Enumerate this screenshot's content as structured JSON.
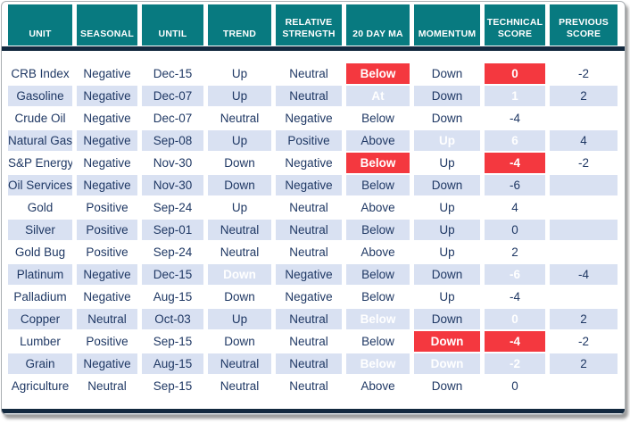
{
  "colors": {
    "header_bg": "#087A80",
    "header_text": "#FFFFFF",
    "row_alt": "#D9E1F2",
    "highlight_red": "#F4383F",
    "highlight_green": "#92D050",
    "text_navy": "#1F3864",
    "divider_navy": "#13293F"
  },
  "table": {
    "headers": [
      "UNIT",
      "SEASONAL",
      "UNTIL",
      "TREND",
      "RELATIVE STRENGTH",
      "20 DAY MA",
      "MOMENTUM",
      "TECHNICAL SCORE",
      "PREVIOUS SCORE"
    ],
    "rows": [
      {
        "cells": [
          {
            "t": "CRB Index"
          },
          {
            "t": "Negative"
          },
          {
            "t": "Dec-15"
          },
          {
            "t": "Up"
          },
          {
            "t": "Neutral"
          },
          {
            "t": "Below",
            "h": "red"
          },
          {
            "t": "Down"
          },
          {
            "t": "0",
            "h": "red"
          },
          {
            "t": "-2"
          }
        ]
      },
      {
        "cells": [
          {
            "t": "Gasoline"
          },
          {
            "t": "Negative"
          },
          {
            "t": "Dec-07"
          },
          {
            "t": "Up"
          },
          {
            "t": "Neutral"
          },
          {
            "t": "At",
            "h": "red"
          },
          {
            "t": "Down"
          },
          {
            "t": "1",
            "h": "red"
          },
          {
            "t": "2"
          }
        ]
      },
      {
        "cells": [
          {
            "t": "Crude Oil"
          },
          {
            "t": "Negative"
          },
          {
            "t": "Dec-07"
          },
          {
            "t": "Neutral"
          },
          {
            "t": "Negative"
          },
          {
            "t": "Below"
          },
          {
            "t": "Down"
          },
          {
            "t": "-4"
          },
          {
            "t": ""
          }
        ]
      },
      {
        "cells": [
          {
            "t": "Natural Gas"
          },
          {
            "t": "Negative"
          },
          {
            "t": "Sep-08"
          },
          {
            "t": "Up"
          },
          {
            "t": "Positive"
          },
          {
            "t": "Above"
          },
          {
            "t": "Up",
            "h": "green"
          },
          {
            "t": "6",
            "h": "green"
          },
          {
            "t": "4"
          }
        ]
      },
      {
        "cells": [
          {
            "t": "S&P Energy"
          },
          {
            "t": "Negative"
          },
          {
            "t": "Nov-30"
          },
          {
            "t": "Down"
          },
          {
            "t": "Negative"
          },
          {
            "t": "Below",
            "h": "red"
          },
          {
            "t": "Up"
          },
          {
            "t": "-4",
            "h": "red"
          },
          {
            "t": "-2"
          }
        ]
      },
      {
        "cells": [
          {
            "t": "Oil Services"
          },
          {
            "t": "Negative"
          },
          {
            "t": "Nov-30"
          },
          {
            "t": "Down"
          },
          {
            "t": "Negative"
          },
          {
            "t": "Below"
          },
          {
            "t": "Down"
          },
          {
            "t": "-6"
          },
          {
            "t": ""
          }
        ]
      },
      {
        "cells": [
          {
            "t": "Gold"
          },
          {
            "t": "Positive"
          },
          {
            "t": "Sep-24"
          },
          {
            "t": "Up"
          },
          {
            "t": "Neutral"
          },
          {
            "t": "Above"
          },
          {
            "t": "Up"
          },
          {
            "t": "4"
          },
          {
            "t": ""
          }
        ]
      },
      {
        "cells": [
          {
            "t": "Silver"
          },
          {
            "t": "Positive"
          },
          {
            "t": "Sep-01"
          },
          {
            "t": "Neutral"
          },
          {
            "t": "Neutral"
          },
          {
            "t": "Below"
          },
          {
            "t": "Up"
          },
          {
            "t": "0"
          },
          {
            "t": ""
          }
        ]
      },
      {
        "cells": [
          {
            "t": "Gold Bug"
          },
          {
            "t": "Positive"
          },
          {
            "t": "Sep-24"
          },
          {
            "t": "Neutral"
          },
          {
            "t": "Neutral"
          },
          {
            "t": "Above"
          },
          {
            "t": "Up"
          },
          {
            "t": "2"
          },
          {
            "t": ""
          }
        ]
      },
      {
        "cells": [
          {
            "t": "Platinum"
          },
          {
            "t": "Negative"
          },
          {
            "t": "Dec-15"
          },
          {
            "t": "Down",
            "h": "red"
          },
          {
            "t": "Negative"
          },
          {
            "t": "Below"
          },
          {
            "t": "Down"
          },
          {
            "t": "-6",
            "h": "red"
          },
          {
            "t": "-4"
          }
        ]
      },
      {
        "cells": [
          {
            "t": "Palladium"
          },
          {
            "t": "Negative"
          },
          {
            "t": "Aug-15"
          },
          {
            "t": "Down"
          },
          {
            "t": "Negative"
          },
          {
            "t": "Below"
          },
          {
            "t": "Up"
          },
          {
            "t": "-4"
          },
          {
            "t": ""
          }
        ]
      },
      {
        "cells": [
          {
            "t": "Copper"
          },
          {
            "t": "Neutral"
          },
          {
            "t": "Oct-03"
          },
          {
            "t": "Up"
          },
          {
            "t": "Neutral"
          },
          {
            "t": "Below",
            "h": "red"
          },
          {
            "t": "Down"
          },
          {
            "t": "0",
            "h": "red"
          },
          {
            "t": "2"
          }
        ]
      },
      {
        "cells": [
          {
            "t": "Lumber"
          },
          {
            "t": "Positive"
          },
          {
            "t": "Sep-15"
          },
          {
            "t": "Down"
          },
          {
            "t": "Neutral"
          },
          {
            "t": "Below"
          },
          {
            "t": "Down",
            "h": "red"
          },
          {
            "t": "-4",
            "h": "red"
          },
          {
            "t": "-2"
          }
        ]
      },
      {
        "cells": [
          {
            "t": "Grain"
          },
          {
            "t": "Negative"
          },
          {
            "t": "Aug-15"
          },
          {
            "t": "Neutral"
          },
          {
            "t": "Neutral"
          },
          {
            "t": "Below",
            "h": "red"
          },
          {
            "t": "Down",
            "h": "red"
          },
          {
            "t": "-2",
            "h": "red"
          },
          {
            "t": "2"
          }
        ]
      },
      {
        "cells": [
          {
            "t": "Agriculture"
          },
          {
            "t": "Neutral"
          },
          {
            "t": "Sep-15"
          },
          {
            "t": "Neutral"
          },
          {
            "t": "Neutral"
          },
          {
            "t": "Above"
          },
          {
            "t": "Down"
          },
          {
            "t": "0"
          },
          {
            "t": ""
          }
        ]
      }
    ]
  }
}
